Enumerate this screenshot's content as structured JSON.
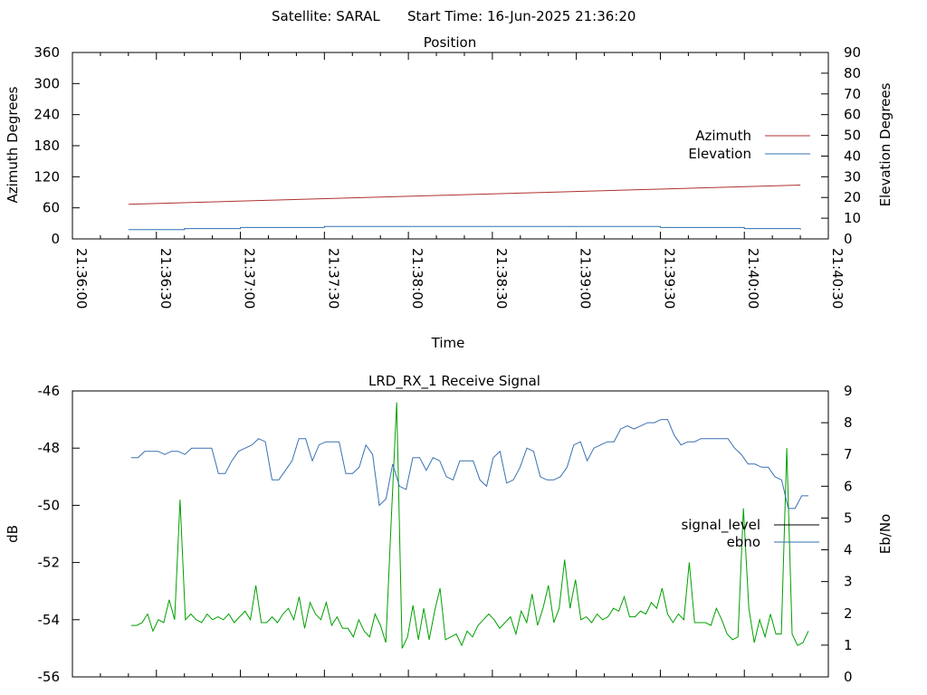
{
  "header": {
    "satellite_label": "Satellite: SARAL",
    "start_time_label": "Start Time: 16-Jun-2025 21:36:20"
  },
  "colors": {
    "azimuth": "#b03030",
    "elevation": "#3070b0",
    "signal_level": "#000000",
    "ebno_line": "#3070b0",
    "ebno_trace": "#3a70b0",
    "signal_trace": "#00a000",
    "axis": "#000000"
  },
  "chart_data": [
    {
      "type": "line",
      "title": "Position",
      "xlabel": "Time",
      "ylabel": "Azimuth Degrees",
      "y2label": "Elevation Degrees",
      "xlim": [
        "21:36:00",
        "21:40:30"
      ],
      "ylim": [
        0,
        360
      ],
      "y2lim": [
        0,
        90
      ],
      "x_ticks": [
        "21:36:00",
        "21:36:30",
        "21:37:00",
        "21:37:30",
        "21:38:00",
        "21:38:30",
        "21:39:00",
        "21:39:30",
        "21:40:00",
        "21:40:30"
      ],
      "y_ticks": [
        0,
        60,
        120,
        180,
        240,
        300,
        360
      ],
      "y2_ticks": [
        0,
        10,
        20,
        30,
        40,
        50,
        60,
        70,
        80,
        90
      ],
      "legend": "right",
      "series": [
        {
          "name": "Azimuth",
          "axis": "y",
          "x": [
            "21:36:20",
            "21:40:20"
          ],
          "values": [
            67,
            104
          ]
        },
        {
          "name": "Elevation",
          "axis": "y2",
          "x": [
            "21:36:20",
            "21:36:40",
            "21:37:00",
            "21:37:30",
            "21:38:00",
            "21:38:30",
            "21:39:00",
            "21:39:30",
            "21:40:00",
            "21:40:20"
          ],
          "values": [
            4.5,
            5,
            5.5,
            6,
            6,
            6,
            6,
            5.5,
            5,
            4.5
          ]
        }
      ]
    },
    {
      "type": "line",
      "title": "LRD_RX_1 Receive Signal",
      "ylabel": "dB",
      "y2label": "Eb/No",
      "ylim": [
        -56,
        -46
      ],
      "y2lim": [
        0,
        9
      ],
      "y_ticks": [
        -56,
        -54,
        -52,
        -50,
        -48,
        -46
      ],
      "y2_ticks": [
        0,
        1,
        2,
        3,
        4,
        5,
        6,
        7,
        8,
        9
      ],
      "legend": "right",
      "series": [
        {
          "name": "signal_level",
          "axis": "y",
          "values": [
            -54.2,
            -54.2,
            -54.1,
            -53.8,
            -54.4,
            -54.0,
            -54.1,
            -53.3,
            -54.0,
            -49.8,
            -54.0,
            -53.8,
            -54.0,
            -54.1,
            -53.8,
            -54.0,
            -53.9,
            -54.0,
            -53.8,
            -54.1,
            -53.9,
            -53.7,
            -54.0,
            -52.8,
            -54.1,
            -54.1,
            -53.9,
            -54.1,
            -53.8,
            -53.6,
            -54.0,
            -53.2,
            -54.3,
            -53.4,
            -53.8,
            -54.0,
            -53.4,
            -54.2,
            -53.9,
            -54.3,
            -54.3,
            -54.6,
            -54.0,
            -54.4,
            -54.6,
            -53.8,
            -54.2,
            -54.8,
            -50.5,
            -46.4,
            -55.0,
            -54.6,
            -53.5,
            -54.7,
            -53.6,
            -54.7,
            -53.7,
            -52.9,
            -54.7,
            -54.6,
            -54.5,
            -54.9,
            -54.4,
            -54.6,
            -54.2,
            -54.0,
            -53.8,
            -54.0,
            -54.3,
            -54.1,
            -53.9,
            -54.5,
            -53.7,
            -54.1,
            -53.1,
            -54.2,
            -53.6,
            -52.8,
            -54.1,
            -53.6,
            -51.9,
            -53.6,
            -52.6,
            -54.0,
            -53.9,
            -54.1,
            -53.8,
            -54.0,
            -53.9,
            -53.6,
            -53.7,
            -53.2,
            -53.9,
            -53.9,
            -53.7,
            -53.8,
            -53.4,
            -53.6,
            -52.9,
            -53.8,
            -54.1,
            -53.8,
            -54.0,
            -52.0,
            -54.1,
            -54.1,
            -54.1,
            -54.2,
            -53.6,
            -54.0,
            -54.5,
            -54.7,
            -54.6,
            -50.1,
            -53.6,
            -54.8,
            -54.0,
            -54.6,
            -53.8,
            -54.5,
            -54.5,
            -48.0,
            -54.5,
            -54.9,
            -54.8,
            -54.4
          ],
          "note": ""
        },
        {
          "name": "ebno",
          "axis": "y2",
          "values": [
            6.9,
            6.9,
            7.1,
            7.1,
            7.1,
            7.0,
            7.1,
            7.1,
            7.0,
            7.2,
            7.2,
            7.2,
            7.2,
            6.4,
            6.4,
            6.8,
            7.1,
            7.2,
            7.3,
            7.5,
            7.4,
            6.2,
            6.2,
            6.5,
            6.8,
            7.5,
            7.5,
            6.8,
            7.3,
            7.4,
            7.4,
            7.4,
            6.4,
            6.4,
            6.6,
            7.3,
            7.0,
            5.4,
            5.6,
            6.7,
            6.0,
            5.9,
            6.9,
            6.9,
            6.5,
            6.9,
            6.8,
            6.3,
            6.2,
            6.8,
            6.8,
            6.8,
            6.2,
            6.0,
            6.9,
            7.1,
            6.1,
            6.2,
            6.6,
            7.2,
            7.1,
            6.3,
            6.2,
            6.2,
            6.3,
            6.6,
            7.3,
            7.4,
            6.8,
            7.2,
            7.3,
            7.4,
            7.4,
            7.8,
            7.9,
            7.8,
            7.9,
            8.0,
            8.0,
            8.1,
            8.1,
            7.6,
            7.3,
            7.4,
            7.4,
            7.5,
            7.5,
            7.5,
            7.5,
            7.5,
            7.2,
            7.0,
            6.7,
            6.7,
            6.6,
            6.6,
            6.3,
            6.2,
            5.3,
            5.3,
            5.7,
            5.7
          ],
          "note": ""
        }
      ]
    }
  ]
}
